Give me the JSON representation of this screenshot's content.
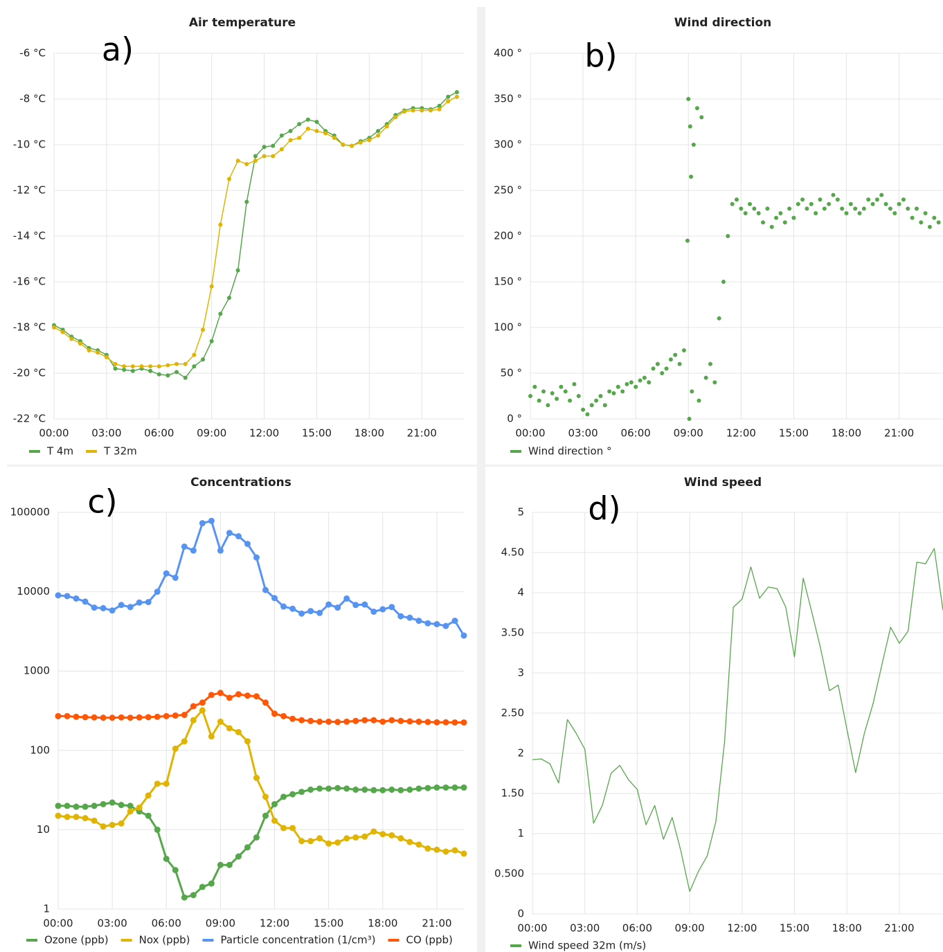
{
  "chart_data": [
    {
      "type": "line",
      "title": "Air temperature",
      "annotation": "a)",
      "x": [
        0,
        0.5,
        1,
        1.5,
        2,
        2.5,
        3,
        3.5,
        4,
        4.5,
        5,
        5.5,
        6,
        6.5,
        7,
        7.5,
        8,
        8.5,
        9,
        9.5,
        10,
        10.5,
        11,
        11.5,
        12,
        12.5,
        13,
        13.5,
        14,
        14.5,
        15,
        15.5,
        16,
        16.5,
        17,
        17.5,
        18,
        18.5,
        19,
        19.5,
        20,
        20.5,
        21,
        21.5,
        22,
        22.5,
        23
      ],
      "series": [
        {
          "name": "T 4m",
          "color": "#56a64b",
          "values": [
            -17.9,
            -18.1,
            -18.4,
            -18.6,
            -18.9,
            -19,
            -19.2,
            -19.8,
            -19.85,
            -19.9,
            -19.8,
            -19.9,
            -20.05,
            -20.1,
            -19.95,
            -20.2,
            -19.7,
            -19.4,
            -18.6,
            -17.4,
            -16.7,
            -15.5,
            -12.5,
            -10.5,
            -10.1,
            -10.05,
            -9.6,
            -9.4,
            -9.1,
            -8.9,
            -9,
            -9.4,
            -9.6,
            -10,
            -10.05,
            -9.85,
            -9.7,
            -9.4,
            -9.1,
            -8.7,
            -8.5,
            -8.4,
            -8.4,
            -8.45,
            -8.3,
            -7.9,
            -7.7
          ]
        },
        {
          "name": "T 32m",
          "color": "#e0b400",
          "values": [
            -18,
            -18.2,
            -18.5,
            -18.7,
            -19,
            -19.1,
            -19.3,
            -19.6,
            -19.7,
            -19.7,
            -19.7,
            -19.7,
            -19.7,
            -19.65,
            -19.6,
            -19.6,
            -19.2,
            -18.1,
            -16.2,
            -13.5,
            -11.5,
            -10.7,
            -10.85,
            -10.7,
            -10.5,
            -10.5,
            -10.2,
            -9.8,
            -9.7,
            -9.3,
            -9.4,
            -9.5,
            -9.7,
            -10,
            -10.05,
            -9.9,
            -9.8,
            -9.6,
            -9.2,
            -8.8,
            -8.55,
            -8.5,
            -8.5,
            -8.5,
            -8.45,
            -8.1,
            -7.9
          ]
        }
      ],
      "xlim": [
        0,
        23.4
      ],
      "xticks": [
        {
          "value": 0,
          "label": "00:00"
        },
        {
          "value": 3,
          "label": "03:00"
        },
        {
          "value": 6,
          "label": "06:00"
        },
        {
          "value": 9,
          "label": "09:00"
        },
        {
          "value": 12,
          "label": "12:00"
        },
        {
          "value": 15,
          "label": "15:00"
        },
        {
          "value": 18,
          "label": "18:00"
        },
        {
          "value": 21,
          "label": "21:00"
        }
      ],
      "ylim": [
        -22,
        -6
      ],
      "yticks": [
        {
          "value": -22,
          "label": "-22 °C"
        },
        {
          "value": -20,
          "label": "-20 °C"
        },
        {
          "value": -18,
          "label": "-18 °C"
        },
        {
          "value": -16,
          "label": "-16 °C"
        },
        {
          "value": -14,
          "label": "-14 °C"
        },
        {
          "value": -12,
          "label": "-12 °C"
        },
        {
          "value": -10,
          "label": "-10 °C"
        },
        {
          "value": -8,
          "label": "-8 °C"
        },
        {
          "value": -6,
          "label": "-6 °C"
        }
      ],
      "grid": true,
      "legend": "bottom-left"
    },
    {
      "type": "scatter",
      "title": "Wind direction",
      "annotation": "b)",
      "x": [
        0,
        0.25,
        0.5,
        0.75,
        1,
        1.25,
        1.5,
        1.75,
        2,
        2.25,
        2.5,
        2.75,
        3,
        3.25,
        3.5,
        3.75,
        4,
        4.25,
        4.5,
        4.75,
        5,
        5.25,
        5.5,
        5.75,
        6,
        6.25,
        6.5,
        6.75,
        7,
        7.25,
        7.5,
        7.75,
        8,
        8.25,
        8.5,
        8.75,
        8.95,
        9,
        9.05,
        9.1,
        9.15,
        9.2,
        9.3,
        9.5,
        9.6,
        9.75,
        10,
        10.25,
        10.5,
        10.75,
        11,
        11.25,
        11.5,
        11.75,
        12,
        12.25,
        12.5,
        12.75,
        13,
        13.25,
        13.5,
        13.75,
        14,
        14.25,
        14.5,
        14.75,
        15,
        15.25,
        15.5,
        15.75,
        16,
        16.25,
        16.5,
        16.75,
        17,
        17.25,
        17.5,
        17.75,
        18,
        18.25,
        18.5,
        18.75,
        19,
        19.25,
        19.5,
        19.75,
        20,
        20.25,
        20.5,
        20.75,
        21,
        21.25,
        21.5,
        21.75,
        22,
        22.25,
        22.5,
        22.75,
        23,
        23.25
      ],
      "series": [
        {
          "name": "Wind direction °",
          "color": "#56a64b",
          "values": [
            25,
            35,
            20,
            30,
            15,
            28,
            22,
            35,
            30,
            20,
            38,
            25,
            10,
            5,
            15,
            20,
            25,
            15,
            30,
            28,
            35,
            30,
            38,
            40,
            35,
            42,
            45,
            40,
            55,
            60,
            50,
            55,
            65,
            70,
            60,
            75,
            195,
            350,
            0,
            320,
            265,
            30,
            300,
            340,
            20,
            330,
            45,
            60,
            40,
            110,
            150,
            200,
            235,
            240,
            230,
            225,
            235,
            230,
            225,
            215,
            230,
            210,
            220,
            225,
            215,
            230,
            220,
            235,
            240,
            230,
            235,
            225,
            240,
            230,
            235,
            245,
            240,
            230,
            225,
            235,
            230,
            225,
            230,
            240,
            235,
            240,
            245,
            235,
            230,
            225,
            235,
            240,
            230,
            220,
            230,
            215,
            225,
            210,
            220,
            215
          ]
        }
      ],
      "xlim": [
        0,
        23.5
      ],
      "xticks": [
        {
          "value": 0,
          "label": "00:00"
        },
        {
          "value": 3,
          "label": "03:00"
        },
        {
          "value": 6,
          "label": "06:00"
        },
        {
          "value": 9,
          "label": "09:00"
        },
        {
          "value": 12,
          "label": "12:00"
        },
        {
          "value": 15,
          "label": "15:00"
        },
        {
          "value": 18,
          "label": "18:00"
        },
        {
          "value": 21,
          "label": "21:00"
        }
      ],
      "ylim": [
        0,
        400
      ],
      "yticks": [
        {
          "value": 0,
          "label": "0 °"
        },
        {
          "value": 50,
          "label": "50 °"
        },
        {
          "value": 100,
          "label": "100 °"
        },
        {
          "value": 150,
          "label": "150 °"
        },
        {
          "value": 200,
          "label": "200 °"
        },
        {
          "value": 250,
          "label": "250 °"
        },
        {
          "value": 300,
          "label": "300 °"
        },
        {
          "value": 350,
          "label": "350 °"
        },
        {
          "value": 400,
          "label": "400 °"
        }
      ],
      "grid": true,
      "legend": "bottom-left"
    },
    {
      "type": "line",
      "title": "Concentrations",
      "annotation": "c)",
      "log_scale": true,
      "x": [
        0,
        0.5,
        1,
        1.5,
        2,
        2.5,
        3,
        3.5,
        4,
        4.5,
        5,
        5.5,
        6,
        6.5,
        7,
        7.5,
        8,
        8.5,
        9,
        9.5,
        10,
        10.5,
        11,
        11.5,
        12,
        12.5,
        13,
        13.5,
        14,
        14.5,
        15,
        15.5,
        16,
        16.5,
        17,
        17.5,
        18,
        18.5,
        19,
        19.5,
        20,
        20.5,
        21,
        21.5,
        22,
        22.5
      ],
      "series": [
        {
          "name": "Ozone (ppb)",
          "color": "#56a64b",
          "values": [
            20,
            20,
            19.5,
            19.5,
            20,
            21,
            22,
            20.5,
            20,
            17,
            15,
            10,
            4.3,
            3.1,
            1.4,
            1.5,
            1.9,
            2.1,
            3.6,
            3.6,
            4.6,
            6,
            8,
            15,
            21,
            26,
            28,
            30,
            32,
            33,
            33,
            33.5,
            33,
            32,
            32,
            31.5,
            31.5,
            32,
            31.5,
            32,
            33,
            33.5,
            34,
            34,
            34,
            34
          ]
        },
        {
          "name": "Nox (ppb)",
          "color": "#e0b400",
          "values": [
            15,
            14.5,
            14.5,
            14,
            13,
            11,
            11.5,
            12,
            17,
            19,
            27,
            38,
            38,
            105,
            130,
            240,
            320,
            150,
            230,
            190,
            170,
            130,
            45,
            26,
            13,
            10.5,
            10.5,
            7.2,
            7.2,
            7.8,
            6.7,
            6.9,
            7.8,
            8,
            8.2,
            9.5,
            8.8,
            8.5,
            7.8,
            7,
            6.5,
            5.8,
            5.6,
            5.3,
            5.5,
            5
          ]
        },
        {
          "name": "Particle concentration (1/cm³)",
          "color": "#5794f2",
          "values": [
            9000,
            8800,
            8200,
            7500,
            6300,
            6200,
            5800,
            6800,
            6400,
            7300,
            7400,
            10000,
            17000,
            15000,
            37000,
            33000,
            73000,
            78000,
            33000,
            55000,
            50000,
            40000,
            27000,
            10500,
            8300,
            6500,
            6100,
            5300,
            5700,
            5400,
            6900,
            6300,
            8200,
            6800,
            6900,
            5600,
            6000,
            6400,
            4900,
            4700,
            4300,
            4000,
            3900,
            3700,
            4300,
            2800
          ]
        },
        {
          "name": "CO (ppb)",
          "color": "#ff5705",
          "values": [
            270,
            270,
            265,
            262,
            260,
            258,
            258,
            260,
            258,
            260,
            262,
            265,
            270,
            275,
            280,
            360,
            400,
            500,
            530,
            460,
            510,
            490,
            480,
            400,
            290,
            270,
            250,
            240,
            235,
            230,
            230,
            228,
            230,
            235,
            240,
            240,
            230,
            240,
            235,
            232,
            230,
            228,
            226,
            226,
            225,
            225
          ]
        }
      ],
      "xlim": [
        0,
        22.5
      ],
      "xticks": [
        {
          "value": 0,
          "label": "00:00"
        },
        {
          "value": 3,
          "label": "03:00"
        },
        {
          "value": 6,
          "label": "06:00"
        },
        {
          "value": 9,
          "label": "09:00"
        },
        {
          "value": 12,
          "label": "12:00"
        },
        {
          "value": 15,
          "label": "15:00"
        },
        {
          "value": 18,
          "label": "18:00"
        },
        {
          "value": 21,
          "label": "21:00"
        }
      ],
      "ylim": [
        1,
        100000
      ],
      "yticks": [
        1,
        10,
        100,
        1000,
        10000,
        100000
      ],
      "grid": true,
      "legend": "bottom-left"
    },
    {
      "type": "line",
      "title": "Wind speed",
      "annotation": "d)",
      "x": [
        0,
        0.5,
        1,
        1.5,
        2,
        2.5,
        3,
        3.5,
        4,
        4.5,
        5,
        5.5,
        6,
        6.5,
        7,
        7.5,
        8,
        8.5,
        9,
        9.5,
        10,
        10.5,
        11,
        11.5,
        12,
        12.5,
        13,
        13.5,
        14,
        14.5,
        15,
        15.5,
        16,
        16.5,
        17,
        17.5,
        18,
        18.5,
        19,
        19.5,
        20,
        20.5,
        21,
        21.5,
        22,
        22.5,
        23,
        23.5
      ],
      "series": [
        {
          "name": "Wind speed 32m (m/s)",
          "color": "#56a64b",
          "values": [
            1.92,
            1.93,
            1.87,
            1.63,
            2.42,
            2.25,
            2.05,
            1.13,
            1.35,
            1.75,
            1.85,
            1.67,
            1.55,
            1.11,
            1.35,
            0.93,
            1.2,
            0.78,
            0.28,
            0.53,
            0.72,
            1.15,
            2.15,
            3.82,
            3.92,
            4.32,
            3.93,
            4.07,
            4.05,
            3.82,
            3.2,
            4.18,
            3.75,
            3.3,
            2.78,
            2.85,
            2.3,
            1.76,
            2.25,
            2.62,
            3.1,
            3.57,
            3.37,
            3.52,
            4.38,
            4.36,
            4.55,
            3.78
          ]
        }
      ],
      "xlim": [
        0,
        23.5
      ],
      "xticks": [
        {
          "value": 0,
          "label": "00:00"
        },
        {
          "value": 3,
          "label": "03:00"
        },
        {
          "value": 6,
          "label": "06:00"
        },
        {
          "value": 9,
          "label": "09:00"
        },
        {
          "value": 12,
          "label": "12:00"
        },
        {
          "value": 15,
          "label": "15:00"
        },
        {
          "value": 18,
          "label": "18:00"
        },
        {
          "value": 21,
          "label": "21:00"
        }
      ],
      "ylim": [
        0,
        5
      ],
      "yticks": [
        0,
        {
          "value": 0.5,
          "label": "0.500"
        },
        1,
        {
          "value": 1.5,
          "label": "1.50"
        },
        2,
        {
          "value": 2.5,
          "label": "2.50"
        },
        3,
        {
          "value": 3.5,
          "label": "3.50"
        },
        4,
        {
          "value": 4.5,
          "label": "4.50"
        },
        5
      ],
      "grid": true,
      "legend": "bottom-left"
    }
  ]
}
